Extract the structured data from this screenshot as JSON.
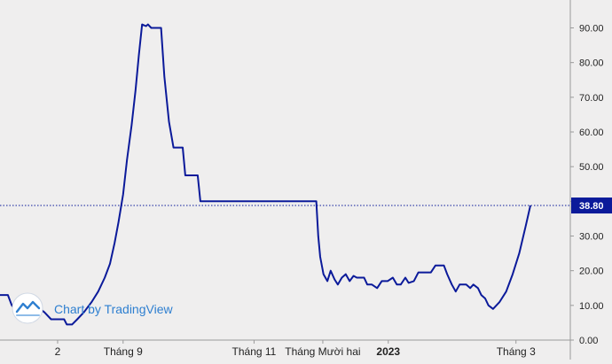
{
  "chart_data": {
    "type": "line",
    "title": "",
    "xlabel": "",
    "ylabel": "",
    "ylim": [
      0,
      96
    ],
    "yticks": [
      0,
      10,
      20,
      30,
      40,
      50,
      60,
      70,
      80,
      90
    ],
    "ytick_labels": [
      "0.00",
      "10.00",
      "20.00",
      "30.00",
      "40.00",
      "50.00",
      "60.00",
      "70.00",
      "80.00",
      "90.00"
    ],
    "grid": false,
    "xtick_labels": [
      {
        "label": "2",
        "x": 0.1,
        "bold": false
      },
      {
        "label": "Tháng 9",
        "x": 1.1,
        "bold": false
      },
      {
        "label": "Tháng 11",
        "x": 3.1,
        "bold": false
      },
      {
        "label": "Tháng Mười hai",
        "x": 4.15,
        "bold": false
      },
      {
        "label": "2023",
        "x": 5.15,
        "bold": true
      },
      {
        "label": "Tháng 3",
        "x": 7.1,
        "bold": false
      }
    ],
    "xlim": [
      -0.78,
      7.93
    ],
    "line_color": "#0b1a9a",
    "last_price": 38.8,
    "last_price_label": "38.80",
    "last_price_color": "#0b1a9a",
    "watermark": "Chart by TradingView",
    "series": [
      {
        "points": [
          [
            -0.78,
            13
          ],
          [
            -0.66,
            13
          ],
          [
            -0.6,
            10
          ],
          [
            -0.52,
            8
          ],
          [
            -0.47,
            9.5
          ],
          [
            -0.33,
            9.5
          ],
          [
            -0.2,
            9.5
          ],
          [
            -0.1,
            8
          ],
          [
            0.0,
            6
          ],
          [
            0.1,
            6
          ],
          [
            0.2,
            6
          ],
          [
            0.24,
            4.5
          ],
          [
            0.32,
            4.5
          ],
          [
            0.4,
            6
          ],
          [
            0.5,
            8
          ],
          [
            0.62,
            11
          ],
          [
            0.72,
            14
          ],
          [
            0.82,
            18
          ],
          [
            0.9,
            22
          ],
          [
            0.97,
            28
          ],
          [
            1.03,
            34
          ],
          [
            1.1,
            42
          ],
          [
            1.16,
            52
          ],
          [
            1.23,
            62
          ],
          [
            1.29,
            72
          ],
          [
            1.34,
            82
          ],
          [
            1.39,
            91
          ],
          [
            1.45,
            90.5
          ],
          [
            1.48,
            91
          ],
          [
            1.53,
            90
          ],
          [
            1.68,
            90
          ],
          [
            1.73,
            76
          ],
          [
            1.8,
            63
          ],
          [
            1.87,
            55.5
          ],
          [
            2.01,
            55.5
          ],
          [
            2.05,
            47.5
          ],
          [
            2.24,
            47.5
          ],
          [
            2.28,
            40
          ],
          [
            4.05,
            40
          ],
          [
            4.08,
            30
          ],
          [
            4.11,
            24
          ],
          [
            4.16,
            19
          ],
          [
            4.22,
            17
          ],
          [
            4.27,
            20
          ],
          [
            4.33,
            17.5
          ],
          [
            4.38,
            16
          ],
          [
            4.44,
            18
          ],
          [
            4.5,
            19
          ],
          [
            4.56,
            17
          ],
          [
            4.62,
            18.5
          ],
          [
            4.67,
            18
          ],
          [
            4.78,
            18
          ],
          [
            4.83,
            16
          ],
          [
            4.9,
            16
          ],
          [
            4.98,
            15
          ],
          [
            5.05,
            17
          ],
          [
            5.14,
            17
          ],
          [
            5.22,
            18
          ],
          [
            5.28,
            16
          ],
          [
            5.34,
            16
          ],
          [
            5.41,
            18
          ],
          [
            5.46,
            16.5
          ],
          [
            5.54,
            17
          ],
          [
            5.61,
            19.5
          ],
          [
            5.8,
            19.5
          ],
          [
            5.87,
            21.5
          ],
          [
            6.0,
            21.5
          ],
          [
            6.05,
            19
          ],
          [
            6.12,
            16
          ],
          [
            6.18,
            14
          ],
          [
            6.24,
            16
          ],
          [
            6.34,
            16
          ],
          [
            6.4,
            15
          ],
          [
            6.45,
            16
          ],
          [
            6.52,
            15
          ],
          [
            6.57,
            13
          ],
          [
            6.63,
            12
          ],
          [
            6.68,
            10
          ],
          [
            6.75,
            9
          ],
          [
            6.85,
            11
          ],
          [
            6.95,
            14
          ],
          [
            7.05,
            19
          ],
          [
            7.15,
            25
          ],
          [
            7.25,
            33
          ],
          [
            7.32,
            38.8
          ]
        ]
      }
    ]
  }
}
